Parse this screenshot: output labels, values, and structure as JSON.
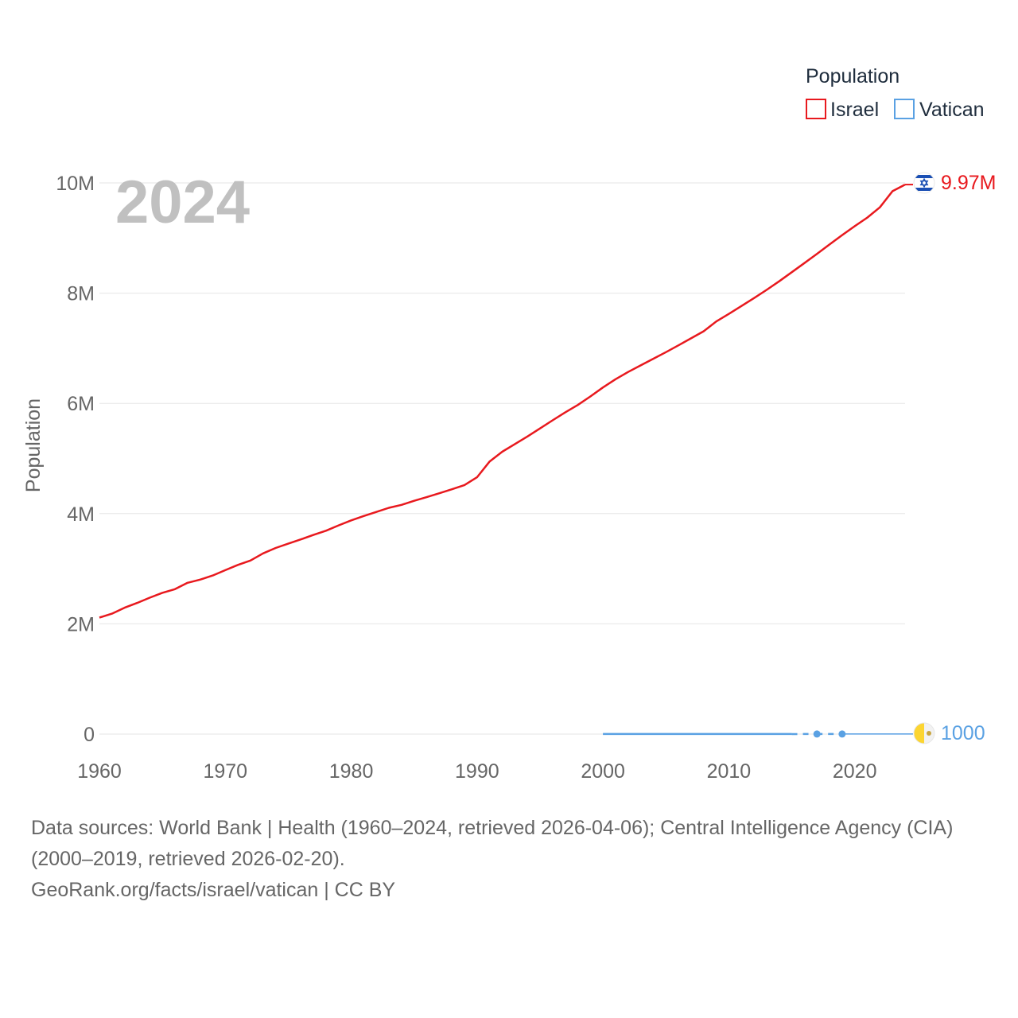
{
  "chart_data": {
    "type": "line",
    "year_overlay": "2024",
    "ylabel": "Population",
    "ylim": [
      0,
      10000000
    ],
    "xlim": [
      1960,
      2024
    ],
    "y_ticks": [
      {
        "value": 0,
        "label": "0"
      },
      {
        "value": 2000000,
        "label": "2M"
      },
      {
        "value": 4000000,
        "label": "4M"
      },
      {
        "value": 6000000,
        "label": "6M"
      },
      {
        "value": 8000000,
        "label": "8M"
      },
      {
        "value": 10000000,
        "label": "10M"
      }
    ],
    "x_ticks": [
      {
        "value": 1960,
        "label": "1960"
      },
      {
        "value": 1970,
        "label": "1970"
      },
      {
        "value": 1980,
        "label": "1980"
      },
      {
        "value": 1990,
        "label": "1990"
      },
      {
        "value": 2000,
        "label": "2000"
      },
      {
        "value": 2010,
        "label": "2010"
      },
      {
        "value": 2020,
        "label": "2020"
      }
    ],
    "legend": {
      "title": "Population",
      "position": "top-right"
    },
    "series": [
      {
        "name": "Israel",
        "color": "#e8191e",
        "flag": "israel-flag-icon",
        "end_label": "9.97M",
        "x": [
          1960,
          1961,
          1962,
          1963,
          1964,
          1965,
          1966,
          1967,
          1968,
          1969,
          1970,
          1971,
          1972,
          1973,
          1974,
          1975,
          1976,
          1977,
          1978,
          1979,
          1980,
          1981,
          1982,
          1983,
          1984,
          1985,
          1986,
          1987,
          1988,
          1989,
          1990,
          1991,
          1992,
          1993,
          1994,
          1995,
          1996,
          1997,
          1998,
          1999,
          2000,
          2001,
          2002,
          2003,
          2004,
          2005,
          2006,
          2007,
          2008,
          2009,
          2010,
          2011,
          2012,
          2013,
          2014,
          2015,
          2016,
          2017,
          2018,
          2019,
          2020,
          2021,
          2022,
          2023,
          2024
        ],
        "values": [
          2114020,
          2185000,
          2293000,
          2379000,
          2475000,
          2563000,
          2629000,
          2745000,
          2803000,
          2877000,
          2974000,
          3069000,
          3148000,
          3278000,
          3377000,
          3455000,
          3533000,
          3613000,
          3690000,
          3786000,
          3878000,
          3956000,
          4031000,
          4105000,
          4159000,
          4233000,
          4299000,
          4369000,
          4442000,
          4518000,
          4660000,
          4946000,
          5123000,
          5261000,
          5399000,
          5545000,
          5692000,
          5836000,
          5971000,
          6125000,
          6289000,
          6439000,
          6570000,
          6690000,
          6809000,
          6930000,
          7054000,
          7180000,
          7309000,
          7486000,
          7624000,
          7766000,
          7910000,
          8059000,
          8215000,
          8380000,
          8546000,
          8713000,
          8883000,
          9054000,
          9215000,
          9371000,
          9557000,
          9850000,
          9970000
        ]
      },
      {
        "name": "Vatican",
        "color": "#5aa1e3",
        "flag": "vatican-flag-icon",
        "end_label": "1000",
        "x": [
          2000,
          2001,
          2002,
          2003,
          2004,
          2005,
          2006,
          2007,
          2008,
          2009,
          2010,
          2011,
          2012,
          2013,
          2014,
          2015,
          2017,
          2019,
          2024
        ],
        "values": [
          890,
          890,
          900,
          900,
          920,
          920,
          920,
          930,
          820,
          830,
          830,
          830,
          840,
          840,
          840,
          840,
          1000,
          1000,
          1000
        ]
      }
    ],
    "source_line_1": "Data sources: World Bank | Health (1960–2024, retrieved 2026-04-06); Central Intelligence Agency (CIA) (2000–2019, retrieved 2026-02-20).",
    "source_line_2": "GeoRank.org/facts/israel/vatican | CC BY"
  }
}
